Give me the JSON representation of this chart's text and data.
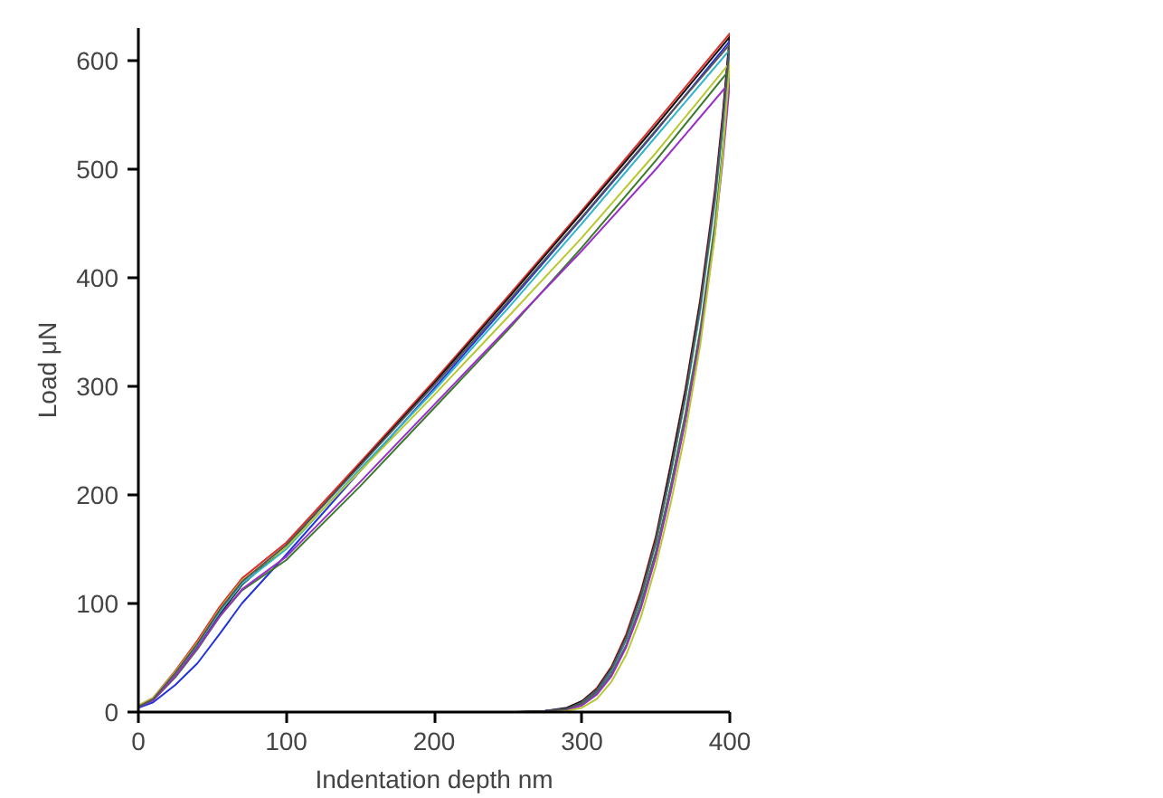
{
  "chart_data": {
    "type": "line",
    "xlabel": "Indentation depth nm",
    "ylabel": "Load μN",
    "xlim": [
      0,
      400
    ],
    "ylim": [
      0,
      630
    ],
    "xticks": [
      0,
      100,
      200,
      300,
      400
    ],
    "yticks": [
      0,
      100,
      200,
      300,
      400,
      500,
      600
    ],
    "grid": false,
    "marker": "none",
    "line_style": "solid",
    "series": [
      {
        "color": "#e0302a",
        "x": [
          0,
          10,
          25,
          40,
          55,
          70,
          100,
          150,
          200,
          250,
          300,
          350,
          400,
          395,
          390,
          380,
          370,
          360,
          350,
          340,
          330,
          320,
          310,
          300,
          290
        ],
        "values": [
          6,
          13,
          38,
          66,
          97,
          123,
          156,
          230,
          305,
          383,
          462,
          543,
          625,
          548,
          482,
          380,
          298,
          228,
          162,
          112,
          72,
          42,
          22,
          10,
          4
        ]
      },
      {
        "color": "#111111",
        "x": [
          0,
          10,
          25,
          40,
          55,
          70,
          100,
          150,
          200,
          250,
          300,
          350,
          400,
          395,
          390,
          380,
          370,
          360,
          350,
          340,
          330,
          320,
          310,
          300,
          290,
          275,
          255,
          0
        ],
        "values": [
          5,
          12,
          34,
          60,
          90,
          117,
          153,
          228,
          303,
          381,
          460,
          540,
          622,
          545,
          478,
          378,
          296,
          226,
          160,
          110,
          70,
          41,
          21,
          10,
          4,
          1,
          0,
          0
        ]
      },
      {
        "color": "#2233dd",
        "x": [
          0,
          10,
          25,
          40,
          55,
          70,
          100,
          150,
          200,
          250,
          300,
          350,
          400,
          395,
          390,
          380,
          370,
          360,
          350,
          340,
          330,
          320,
          310,
          300,
          290,
          275,
          262,
          0
        ],
        "values": [
          4,
          9,
          25,
          45,
          72,
          100,
          145,
          222,
          298,
          376,
          455,
          535,
          618,
          540,
          475,
          372,
          290,
          220,
          156,
          106,
          67,
          38,
          19,
          8,
          3,
          1,
          0,
          0
        ]
      },
      {
        "color": "#3a7a2a",
        "x": [
          0,
          10,
          25,
          40,
          55,
          70,
          100,
          150,
          200,
          250,
          300,
          350,
          400,
          395,
          390,
          380,
          370,
          360,
          350,
          340,
          330,
          320,
          310,
          300,
          290,
          278,
          0
        ],
        "values": [
          5,
          11,
          32,
          58,
          88,
          112,
          140,
          208,
          280,
          352,
          428,
          508,
          592,
          515,
          450,
          352,
          275,
          208,
          148,
          100,
          62,
          35,
          17,
          7,
          2,
          0,
          0
        ]
      },
      {
        "color": "#33b5c8",
        "x": [
          0,
          10,
          25,
          40,
          55,
          70,
          100,
          150,
          200,
          250,
          300,
          350,
          400,
          395,
          390,
          380,
          370,
          360,
          350,
          340,
          330,
          320,
          310,
          300
        ],
        "values": [
          5,
          12,
          35,
          62,
          92,
          118,
          150,
          224,
          296,
          372,
          450,
          530,
          610,
          535,
          470,
          370,
          290,
          220,
          157,
          107,
          68,
          39,
          20,
          9
        ]
      },
      {
        "color": "#9a2fc8",
        "x": [
          0,
          10,
          25,
          40,
          55,
          70,
          100,
          150,
          200,
          250,
          300,
          350,
          400,
          395,
          390,
          380,
          370,
          360,
          350,
          340,
          330,
          320,
          310,
          300,
          290,
          278,
          0
        ],
        "values": [
          5,
          11,
          33,
          59,
          88,
          113,
          143,
          212,
          283,
          354,
          425,
          500,
          580,
          505,
          442,
          345,
          268,
          202,
          143,
          96,
          60,
          33,
          16,
          6,
          2,
          0,
          0
        ]
      },
      {
        "color": "#b8c830",
        "x": [
          0,
          10,
          25,
          40,
          55,
          70,
          100,
          150,
          200,
          250,
          300,
          350,
          400,
          395,
          390,
          380,
          370,
          360,
          350,
          340,
          330,
          320,
          310,
          300,
          290,
          280,
          0
        ],
        "values": [
          6,
          13,
          37,
          64,
          95,
          121,
          152,
          222,
          292,
          364,
          437,
          515,
          598,
          510,
          440,
          338,
          258,
          192,
          135,
          88,
          53,
          28,
          12,
          4,
          1,
          0,
          0
        ]
      },
      {
        "color": "#555555",
        "x": [
          0,
          10,
          25,
          40,
          55,
          70,
          100,
          150,
          200,
          250,
          300,
          350,
          400,
          395,
          390,
          380,
          370,
          360,
          350,
          340,
          330,
          320,
          310,
          300,
          290,
          275,
          258,
          0
        ],
        "values": [
          5,
          12,
          36,
          63,
          94,
          120,
          154,
          227,
          301,
          378,
          456,
          536,
          615,
          540,
          474,
          374,
          292,
          222,
          158,
          108,
          69,
          40,
          20,
          9,
          3,
          1,
          0,
          0
        ]
      }
    ]
  }
}
